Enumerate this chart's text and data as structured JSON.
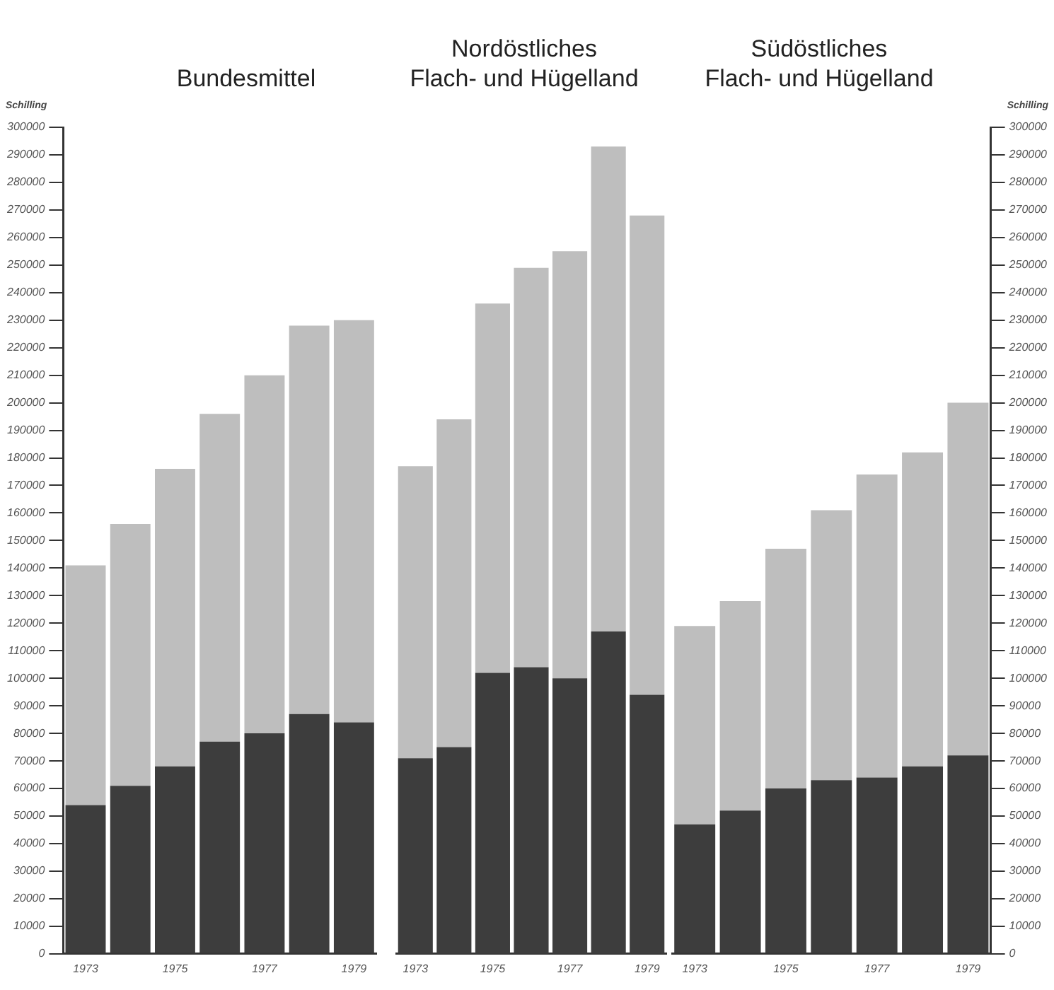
{
  "chart_data": [
    {
      "type": "bar",
      "title": "Bundesmittel",
      "ylabel": "Schilling",
      "stacked": true,
      "categories": [
        "1973",
        null,
        "1975",
        null,
        "1977",
        null,
        "1979"
      ],
      "ylim": [
        0,
        300000
      ],
      "yticks": [
        0,
        10000,
        20000,
        30000,
        40000,
        50000,
        60000,
        70000,
        80000,
        90000,
        100000,
        110000,
        120000,
        130000,
        140000,
        150000,
        160000,
        170000,
        180000,
        190000,
        200000,
        210000,
        220000,
        230000,
        240000,
        250000,
        260000,
        270000,
        280000,
        290000,
        300000
      ],
      "series": [
        {
          "color": "#3d3d3d",
          "values": [
            54000,
            61000,
            68000,
            77000,
            80000,
            87000,
            84000
          ]
        },
        {
          "color": "#bebebe",
          "values": [
            87000,
            95000,
            108000,
            119000,
            130000,
            141000,
            146000
          ]
        }
      ]
    },
    {
      "type": "bar",
      "title": "Nordöstliches\nFlach- und Hügelland",
      "stacked": true,
      "tick_labels": "x",
      "categories": [
        "1973",
        null,
        "1975",
        null,
        "1977",
        null,
        "1979"
      ],
      "ylim": [
        0,
        300000
      ],
      "series": [
        {
          "color": "#3d3d3d",
          "values": [
            71000,
            75000,
            102000,
            104000,
            100000,
            117000,
            94000
          ]
        },
        {
          "color": "#bebebe",
          "values": [
            106000,
            119000,
            134000,
            145000,
            155000,
            176000,
            174000
          ]
        }
      ]
    },
    {
      "type": "bar",
      "title": "Südöstliches\nFlach- und Hügelland",
      "y2label": "Schilling",
      "stacked": true,
      "categories": [
        "1973",
        null,
        "1975",
        null,
        "1977",
        null,
        "1979"
      ],
      "y2lim": [
        0,
        300000
      ],
      "y2ticks": [
        0,
        10000,
        20000,
        30000,
        40000,
        50000,
        60000,
        70000,
        80000,
        90000,
        100000,
        110000,
        120000,
        130000,
        140000,
        150000,
        160000,
        170000,
        180000,
        190000,
        200000,
        210000,
        220000,
        230000,
        240000,
        250000,
        260000,
        270000,
        280000,
        290000,
        300000
      ],
      "series": [
        {
          "axis": "y2",
          "color": "#3d3d3d",
          "values": [
            47000,
            52000,
            60000,
            63000,
            64000,
            68000,
            72000
          ]
        },
        {
          "axis": "y2",
          "color": "#bebebe",
          "values": [
            72000,
            76000,
            87000,
            98000,
            110000,
            114000,
            128000
          ]
        }
      ]
    }
  ]
}
